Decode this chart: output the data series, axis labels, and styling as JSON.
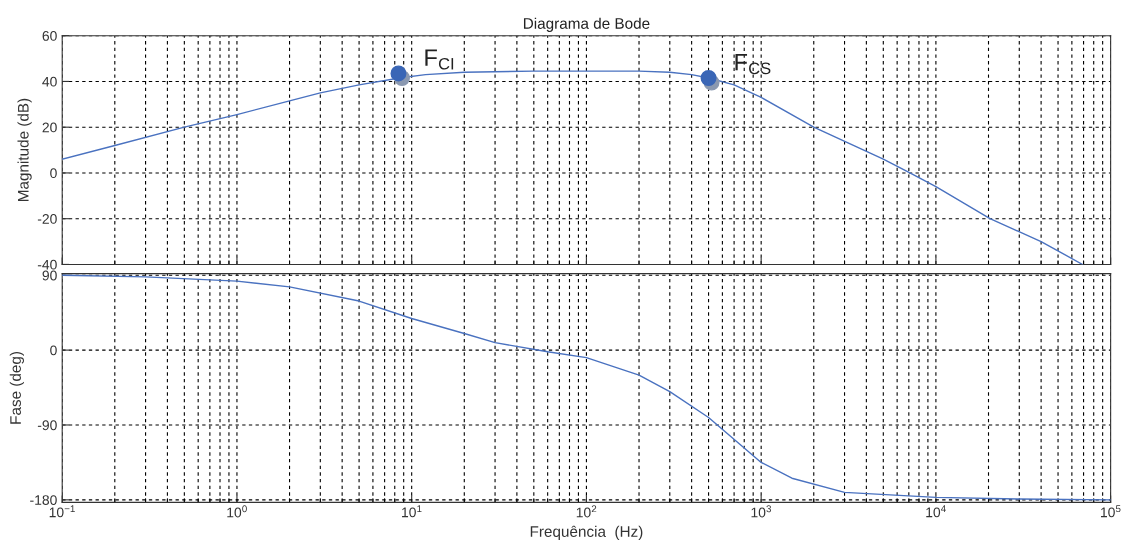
{
  "chart_data": [
    {
      "type": "line",
      "title": "Diagrama de Bode",
      "ylabel": "Magnitude (dB)",
      "log": "x",
      "grid": true,
      "tick_labels": "y",
      "line_style": "solid",
      "marker": "none",
      "xlim": [
        0.1,
        100000
      ],
      "xticks": [
        {
          "value": 0.1,
          "label": null
        },
        {
          "value": 1,
          "label": null
        },
        {
          "value": 10,
          "label": null
        },
        {
          "value": 100,
          "label": null
        },
        {
          "value": 1000,
          "label": null
        },
        {
          "value": 10000,
          "label": null
        },
        {
          "value": 100000,
          "label": null
        }
      ],
      "ylim": [
        -40,
        60
      ],
      "yticks": [
        -40,
        -20,
        0,
        20,
        40,
        60
      ],
      "series": [
        {
          "color": "#4a72c0",
          "x": [
            0.1,
            0.2,
            0.5,
            1,
            2,
            3,
            5,
            8.5,
            12,
            20,
            50,
            100,
            200,
            300,
            400,
            500,
            700,
            1000,
            2000,
            5000,
            7100,
            10000,
            20400,
            40000,
            69000
          ],
          "values": [
            6,
            12,
            20,
            25.5,
            31.5,
            35,
            38.5,
            41.5,
            43,
            44,
            44.5,
            44.5,
            44.5,
            44,
            43,
            41.5,
            38.5,
            33,
            20,
            6,
            0,
            -6,
            -20,
            -30,
            -40
          ]
        },
        {
          "type": "scatter",
          "marker": "circle",
          "color": "#8a98b0",
          "x": [
            8.8,
            520
          ],
          "values": [
            41.5,
            39.5
          ]
        },
        {
          "type": "scatter",
          "marker": "circle",
          "color": "#3a66b6",
          "x": [
            8.4,
            500
          ],
          "values": [
            43.5,
            41.5
          ]
        }
      ],
      "annotations": [
        "F$_{CI}$",
        "F$_{CS}$"
      ]
    },
    {
      "type": "line",
      "xlabel": "Frequência  (Hz)",
      "ylabel": "Fase (deg)",
      "log": "x",
      "grid": true,
      "line_style": "solid",
      "marker": "none",
      "xlim": [
        0.1,
        100000
      ],
      "xticks": [
        {
          "value": 0.1,
          "label": "10$^{−1}$"
        },
        {
          "value": 1,
          "label": "10$^{0}$"
        },
        {
          "value": 10,
          "label": "10$^{1}$"
        },
        {
          "value": 100,
          "label": "10$^{2}$"
        },
        {
          "value": 1000,
          "label": "10$^{3}$"
        },
        {
          "value": 10000,
          "label": "10$^{4}$"
        },
        {
          "value": 100000,
          "label": "10$^{5}$"
        }
      ],
      "ylim": [
        -183,
        92
      ],
      "yticks": [
        -180,
        -90,
        0,
        90
      ],
      "series": [
        {
          "color": "#4a72c0",
          "x": [
            0.1,
            0.3,
            1,
            2,
            5,
            10,
            20,
            30,
            60,
            100,
            200,
            300,
            500,
            1000,
            1500,
            3000,
            10000,
            30000,
            100000
          ],
          "values": [
            90,
            88,
            83,
            76,
            59,
            38,
            20,
            9,
            -2,
            -9,
            -30,
            -50,
            -81,
            -135,
            -154,
            -171,
            -177,
            -179,
            -180
          ]
        }
      ]
    }
  ]
}
